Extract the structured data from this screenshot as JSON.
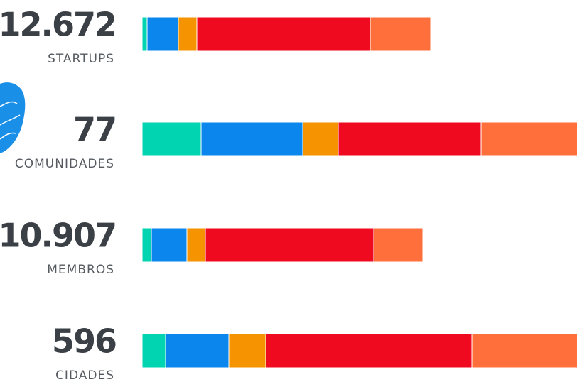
{
  "chart_data": {
    "type": "bar",
    "orientation": "horizontal",
    "stacked": true,
    "categories": [
      "12.672",
      "77",
      "10.907",
      "596"
    ],
    "labels": [
      "STARTUPS",
      "COMUNIDADES",
      "MEMBROS",
      "CIDADES"
    ],
    "xlim": [
      0,
      612
    ],
    "series": [
      {
        "color": "#00d4b0",
        "values": [
          7,
          83,
          13,
          33
        ]
      },
      {
        "color": "#0b86ec",
        "values": [
          44,
          143,
          50,
          89
        ]
      },
      {
        "color": "#f59300",
        "values": [
          26,
          50,
          26,
          52
        ]
      },
      {
        "color": "#f00a20",
        "values": [
          244,
          201,
          237,
          290
        ]
      },
      {
        "color": "#ff6f3c",
        "values": [
          85,
          150,
          69,
          160
        ]
      }
    ]
  }
}
